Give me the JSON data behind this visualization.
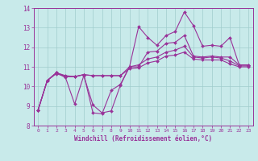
{
  "xlabel": "Windchill (Refroidissement éolien,°C)",
  "xlim": [
    -0.5,
    23.5
  ],
  "ylim": [
    8,
    14
  ],
  "yticks": [
    8,
    9,
    10,
    11,
    12,
    13,
    14
  ],
  "xticks": [
    0,
    1,
    2,
    3,
    4,
    5,
    6,
    7,
    8,
    9,
    10,
    11,
    12,
    13,
    14,
    15,
    16,
    17,
    18,
    19,
    20,
    21,
    22,
    23
  ],
  "bg_color": "#c8eaea",
  "line_color": "#993399",
  "grid_color": "#a0cccc",
  "series": [
    {
      "x": [
        0,
        1,
        2,
        3,
        4,
        5,
        6,
        7,
        8,
        9,
        10,
        11,
        12,
        13,
        14,
        15,
        16,
        17,
        18,
        19,
        20,
        21,
        22,
        23
      ],
      "y": [
        8.8,
        10.3,
        10.7,
        10.55,
        10.5,
        10.6,
        8.65,
        8.6,
        9.8,
        10.1,
        11.0,
        13.05,
        12.5,
        12.1,
        12.6,
        12.8,
        13.8,
        13.1,
        12.05,
        12.1,
        12.05,
        12.5,
        11.1,
        11.1
      ]
    },
    {
      "x": [
        0,
        1,
        2,
        3,
        4,
        5,
        6,
        7,
        8,
        9,
        10,
        11,
        12,
        13,
        14,
        15,
        16,
        17,
        18,
        19,
        20,
        21,
        22,
        23
      ],
      "y": [
        8.8,
        10.3,
        10.7,
        10.45,
        9.1,
        10.55,
        9.05,
        8.65,
        8.75,
        10.05,
        11.0,
        11.0,
        11.75,
        11.8,
        12.2,
        12.25,
        12.6,
        11.55,
        11.5,
        11.55,
        11.5,
        11.5,
        11.1,
        11.1
      ]
    },
    {
      "x": [
        0,
        1,
        2,
        3,
        4,
        5,
        6,
        7,
        8,
        9,
        10,
        11,
        12,
        13,
        14,
        15,
        16,
        17,
        18,
        19,
        20,
        21,
        22,
        23
      ],
      "y": [
        8.8,
        10.3,
        10.7,
        10.5,
        10.5,
        10.6,
        10.55,
        10.55,
        10.55,
        10.55,
        11.0,
        11.1,
        11.4,
        11.5,
        11.75,
        11.85,
        12.05,
        11.5,
        11.45,
        11.5,
        11.45,
        11.3,
        11.05,
        11.05
      ]
    },
    {
      "x": [
        0,
        1,
        2,
        3,
        4,
        5,
        6,
        7,
        8,
        9,
        10,
        11,
        12,
        13,
        14,
        15,
        16,
        17,
        18,
        19,
        20,
        21,
        22,
        23
      ],
      "y": [
        8.8,
        10.3,
        10.65,
        10.5,
        10.5,
        10.6,
        10.55,
        10.55,
        10.55,
        10.55,
        10.9,
        10.95,
        11.2,
        11.3,
        11.55,
        11.6,
        11.75,
        11.4,
        11.35,
        11.35,
        11.35,
        11.15,
        11.0,
        11.0
      ]
    }
  ]
}
